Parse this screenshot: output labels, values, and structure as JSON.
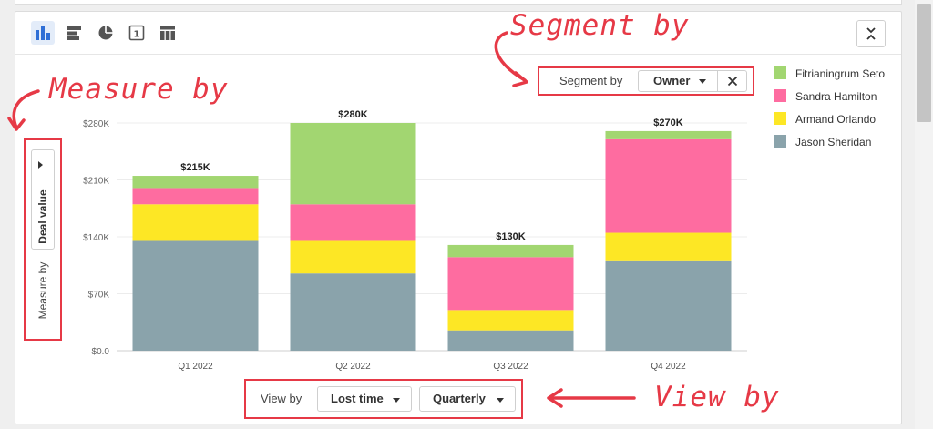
{
  "toolbar": {
    "buttons": [
      {
        "name": "bar-chart-icon",
        "active": true
      },
      {
        "name": "horizontal-bar-icon",
        "active": false
      },
      {
        "name": "pie-chart-icon",
        "active": false
      },
      {
        "name": "single-value-icon",
        "label": "1",
        "active": false
      },
      {
        "name": "table-icon",
        "active": false
      }
    ],
    "collapse_icon": "collapse-icon"
  },
  "segment": {
    "label": "Segment by",
    "value": "Owner",
    "clear_icon": "close-icon"
  },
  "measure": {
    "label": "Measure by",
    "value": "Deal value"
  },
  "view": {
    "label": "View by",
    "time_value": "Lost time",
    "interval_value": "Quarterly"
  },
  "annotations": {
    "segment": "Segment by",
    "measure": "Measure by",
    "view": "View by"
  },
  "colors": {
    "accent": "#e63946",
    "active_bg": "#e3ecf9",
    "icon": "#555555"
  },
  "chart_data": {
    "type": "bar",
    "stacked": true,
    "categories": [
      "Q1 2022",
      "Q2 2022",
      "Q3 2022",
      "Q4 2022"
    ],
    "totals": [
      215000,
      280000,
      130000,
      270000
    ],
    "total_labels": [
      "$215K",
      "$280K",
      "$130K",
      "$270K"
    ],
    "series": [
      {
        "name": "Jason Sheridan",
        "color": "#8aa3ab",
        "values": [
          135000,
          95000,
          25000,
          110000
        ]
      },
      {
        "name": "Armand Orlando",
        "color": "#fde725",
        "values": [
          45000,
          40000,
          25000,
          35000
        ]
      },
      {
        "name": "Sandra Hamilton",
        "color": "#fe6ca0",
        "values": [
          20000,
          45000,
          65000,
          115000
        ]
      },
      {
        "name": "Fitrianingrum Seto",
        "color": "#a2d671",
        "values": [
          15000,
          100000,
          15000,
          10000
        ]
      }
    ],
    "legend_order": [
      3,
      2,
      1,
      0
    ],
    "y_ticks": [
      0,
      70000,
      140000,
      210000,
      280000
    ],
    "y_tick_labels": [
      "$0.0",
      "$70K",
      "$140K",
      "$210K",
      "$280K"
    ],
    "ylim": [
      0,
      280000
    ],
    "grid": true,
    "legend_position": "right"
  }
}
